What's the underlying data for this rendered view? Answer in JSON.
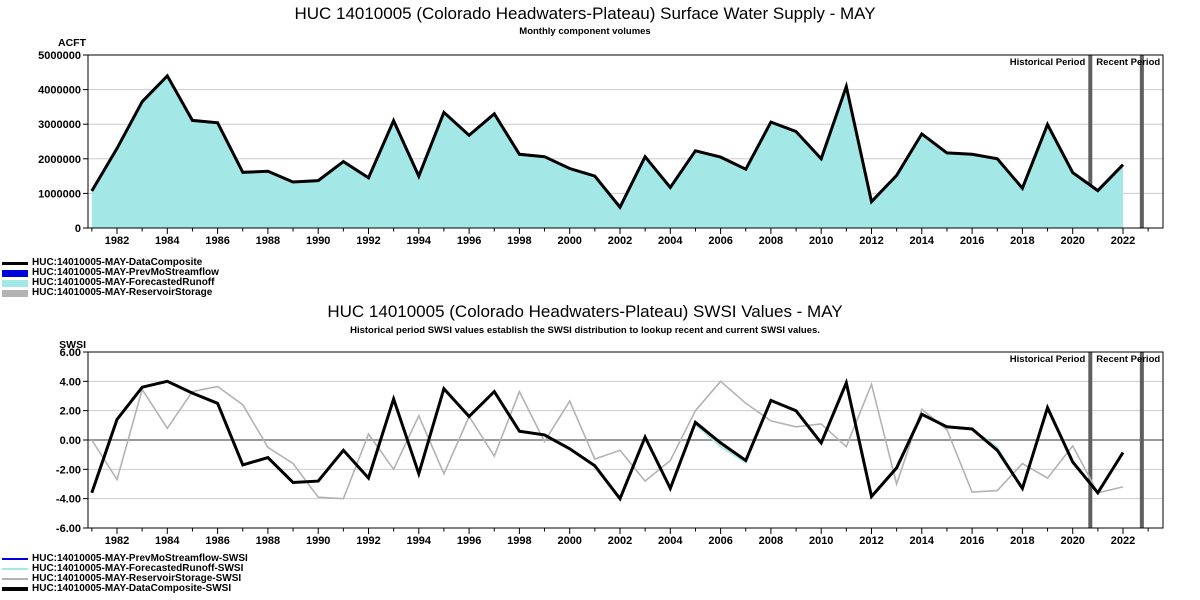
{
  "supply_chart": {
    "title": "HUC 14010005 (Colorado Headwaters-Plateau) Surface Water Supply - MAY",
    "subtitle": "Monthly component volumes",
    "unit": "ACFT"
  },
  "swsi_chart": {
    "title": "HUC 14010005 (Colorado Headwaters-Plateau) SWSI Values - MAY",
    "subtitle": "Historical period SWSI values establish the SWSI distribution to lookup recent and current SWSI values.",
    "unit": "SWSI"
  },
  "colors": {
    "composite": "#000000",
    "prev_mo_streamflow": "#0000DD",
    "forecasted_runoff": "#A3E7E7",
    "reservoir_storage": "#B3B3B3",
    "gridline": "#CCCCCC",
    "zero_line": "#999999",
    "period_divider": "#5F5F5F"
  },
  "legends": [
    {
      "name": "supply-legend",
      "items": [
        {
          "label": "HUC:14010005-MAY-DataComposite",
          "swatch": "line",
          "color": "#000000",
          "thickness": 3
        },
        {
          "label": "HUC:14010005-MAY-PrevMoStreamflow",
          "swatch": "box",
          "color": "#0000DD"
        },
        {
          "label": "HUC:14010005-MAY-ForecastedRunoff",
          "swatch": "box",
          "color": "#A3E7E7"
        },
        {
          "label": "HUC:14010005-MAY-ReservoirStorage",
          "swatch": "box",
          "color": "#B3B3B3"
        }
      ]
    },
    {
      "name": "swsi-legend",
      "items": [
        {
          "label": "HUC:14010005-MAY-PrevMoStreamflow-SWSI",
          "swatch": "line",
          "color": "#0000DD",
          "thickness": 2
        },
        {
          "label": "HUC:14010005-MAY-ForecastedRunoff-SWSI",
          "swatch": "line",
          "color": "#A3E7E7",
          "thickness": 2
        },
        {
          "label": "HUC:14010005-MAY-ReservoirStorage-SWSI",
          "swatch": "line",
          "color": "#B3B3B3",
          "thickness": 2
        },
        {
          "label": "HUC:14010005-MAY-DataComposite-SWSI",
          "swatch": "line",
          "color": "#000000",
          "thickness": 4
        }
      ]
    }
  ],
  "chart_data": [
    {
      "name": "supply",
      "type": "area",
      "title": "HUC 14010005 (Colorado Headwaters-Plateau) Surface Water Supply - MAY",
      "subtitle": "Monthly component volumes",
      "ylabel": "ACFT",
      "ylim": [
        0,
        5000000
      ],
      "yticks": [
        0,
        1000000,
        2000000,
        3000000,
        4000000,
        5000000
      ],
      "ytick_labels": [
        "0",
        "1000000",
        "2000000",
        "3000000",
        "4000000",
        "5000000"
      ],
      "x": [
        1981,
        1982,
        1983,
        1984,
        1985,
        1986,
        1987,
        1988,
        1989,
        1990,
        1991,
        1992,
        1993,
        1994,
        1995,
        1996,
        1997,
        1998,
        1999,
        2000,
        2001,
        2002,
        2003,
        2004,
        2005,
        2006,
        2007,
        2008,
        2009,
        2010,
        2011,
        2012,
        2013,
        2014,
        2015,
        2016,
        2017,
        2018,
        2019,
        2020,
        2021,
        2022
      ],
      "x_tick_labels": [
        "1982",
        "1984",
        "1986",
        "1988",
        "1990",
        "1992",
        "1994",
        "1996",
        "1998",
        "2000",
        "2002",
        "2004",
        "2006",
        "2008",
        "2010",
        "2012",
        "2014",
        "2016",
        "2018",
        "2020",
        "2022"
      ],
      "grid": true,
      "legend_position": "below-left",
      "annotations": {
        "historical": "Historical Period",
        "recent": "Recent Period"
      },
      "period_divider_years": [
        2020.7,
        2022.75
      ],
      "series": [
        {
          "name": "HUC:14010005-MAY-ForecastedRunoff",
          "render": "area",
          "color": "#A3E7E7",
          "values": [
            1070000,
            2300000,
            3650000,
            4400000,
            3110000,
            3040000,
            1610000,
            1640000,
            1330000,
            1370000,
            1920000,
            1450000,
            3100000,
            1500000,
            3340000,
            2680000,
            3300000,
            2130000,
            2060000,
            1720000,
            1500000,
            600000,
            2060000,
            1170000,
            2230000,
            2050000,
            1700000,
            3060000,
            2790000,
            2000000,
            4090000,
            760000,
            1520000,
            2720000,
            2170000,
            2130000,
            2000000,
            1150000,
            2990000,
            1600000,
            1080000,
            1830000
          ]
        },
        {
          "name": "HUC:14010005-MAY-DataComposite",
          "render": "line",
          "color": "#000000",
          "width": 3,
          "values": [
            1070000,
            2300000,
            3650000,
            4400000,
            3110000,
            3040000,
            1610000,
            1640000,
            1330000,
            1370000,
            1920000,
            1450000,
            3100000,
            1500000,
            3340000,
            2680000,
            3300000,
            2130000,
            2060000,
            1720000,
            1500000,
            600000,
            2060000,
            1170000,
            2230000,
            2050000,
            1700000,
            3060000,
            2790000,
            2000000,
            4090000,
            760000,
            1520000,
            2720000,
            2170000,
            2130000,
            2000000,
            1150000,
            2990000,
            1600000,
            1080000,
            1830000
          ]
        }
      ]
    },
    {
      "name": "swsi",
      "type": "line",
      "title": "HUC 14010005 (Colorado Headwaters-Plateau) SWSI Values - MAY",
      "subtitle": "Historical period SWSI values establish the SWSI distribution to lookup recent and current SWSI values.",
      "ylabel": "SWSI",
      "ylim": [
        -6,
        6
      ],
      "yticks": [
        -6,
        -4,
        -2,
        0,
        2,
        4,
        6
      ],
      "ytick_labels": [
        "-6.00",
        "-4.00",
        "-2.00",
        "0.00",
        "2.00",
        "4.00",
        "6.00"
      ],
      "x": [
        1981,
        1982,
        1983,
        1984,
        1985,
        1986,
        1987,
        1988,
        1989,
        1990,
        1991,
        1992,
        1993,
        1994,
        1995,
        1996,
        1997,
        1998,
        1999,
        2000,
        2001,
        2002,
        2003,
        2004,
        2005,
        2006,
        2007,
        2008,
        2009,
        2010,
        2011,
        2012,
        2013,
        2014,
        2015,
        2016,
        2017,
        2018,
        2019,
        2020,
        2021,
        2022
      ],
      "x_tick_labels": [
        "1982",
        "1984",
        "1986",
        "1988",
        "1990",
        "1992",
        "1994",
        "1996",
        "1998",
        "2000",
        "2002",
        "2004",
        "2006",
        "2008",
        "2010",
        "2012",
        "2014",
        "2016",
        "2018",
        "2020",
        "2022"
      ],
      "grid": true,
      "zero_line_emphasized": true,
      "legend_position": "below-left",
      "annotations": {
        "historical": "Historical Period",
        "recent": "Recent Period"
      },
      "period_divider_years": [
        2020.7,
        2022.75
      ],
      "series": [
        {
          "name": "HUC:14010005-MAY-PrevMoStreamflow-SWSI",
          "render": "line",
          "color": "#0000DD",
          "width": 1.6,
          "values": [
            -3.6,
            1.4,
            3.6,
            4.0,
            3.2,
            2.5,
            -1.7,
            -1.2,
            -2.9,
            -2.8,
            -0.7,
            -2.6,
            2.8,
            -2.3,
            3.5,
            1.6,
            3.3,
            0.6,
            0.35,
            -0.6,
            -1.75,
            -4.0,
            0.2,
            -3.3,
            1.2,
            -0.2,
            -1.4,
            2.7,
            2.0,
            -0.2,
            3.9,
            -3.85,
            -1.9,
            1.75,
            0.9,
            0.75,
            -0.7,
            -3.3,
            2.2,
            -1.5,
            -3.6,
            -0.85
          ]
        },
        {
          "name": "HUC:14010005-MAY-ForecastedRunoff-SWSI",
          "render": "line",
          "color": "#A3E7E7",
          "width": 1.6,
          "values": [
            -3.6,
            1.4,
            3.6,
            4.0,
            3.2,
            2.5,
            -1.7,
            -1.2,
            -2.9,
            -2.8,
            -0.7,
            -2.6,
            2.8,
            -2.3,
            3.5,
            1.6,
            3.3,
            0.6,
            0.35,
            -0.6,
            -1.75,
            -4.0,
            0.2,
            -3.3,
            1.05,
            -0.45,
            -1.55,
            2.7,
            2.0,
            -0.2,
            3.9,
            -3.85,
            -1.9,
            1.75,
            0.9,
            0.75,
            -0.5,
            -3.3,
            2.2,
            -1.5,
            -3.6,
            -0.85
          ]
        },
        {
          "name": "HUC:14010005-MAY-ReservoirStorage-SWSI",
          "render": "line",
          "color": "#B3B3B3",
          "width": 1.6,
          "values": [
            0.0,
            -2.7,
            3.45,
            0.8,
            3.3,
            3.65,
            2.4,
            -0.5,
            -1.6,
            -3.9,
            -4.0,
            0.4,
            -2.0,
            1.65,
            -2.3,
            1.6,
            -1.1,
            3.3,
            -0.1,
            2.65,
            -1.3,
            -0.7,
            -2.8,
            -1.4,
            2.0,
            4.0,
            2.5,
            1.3,
            0.9,
            1.1,
            -0.45,
            3.8,
            -3.0,
            2.1,
            0.7,
            -3.55,
            -3.45,
            -1.6,
            -2.6,
            -0.4,
            -3.6,
            -3.2
          ]
        },
        {
          "name": "HUC:14010005-MAY-DataComposite-SWSI",
          "render": "line",
          "color": "#000000",
          "width": 3,
          "values": [
            -3.6,
            1.4,
            3.6,
            4.0,
            3.2,
            2.5,
            -1.7,
            -1.2,
            -2.9,
            -2.8,
            -0.7,
            -2.6,
            2.8,
            -2.3,
            3.5,
            1.6,
            3.3,
            0.6,
            0.35,
            -0.6,
            -1.75,
            -4.0,
            0.2,
            -3.3,
            1.2,
            -0.2,
            -1.4,
            2.7,
            2.0,
            -0.2,
            3.9,
            -3.85,
            -1.9,
            1.75,
            0.9,
            0.75,
            -0.7,
            -3.3,
            2.2,
            -1.5,
            -3.6,
            -0.85
          ]
        }
      ]
    }
  ]
}
